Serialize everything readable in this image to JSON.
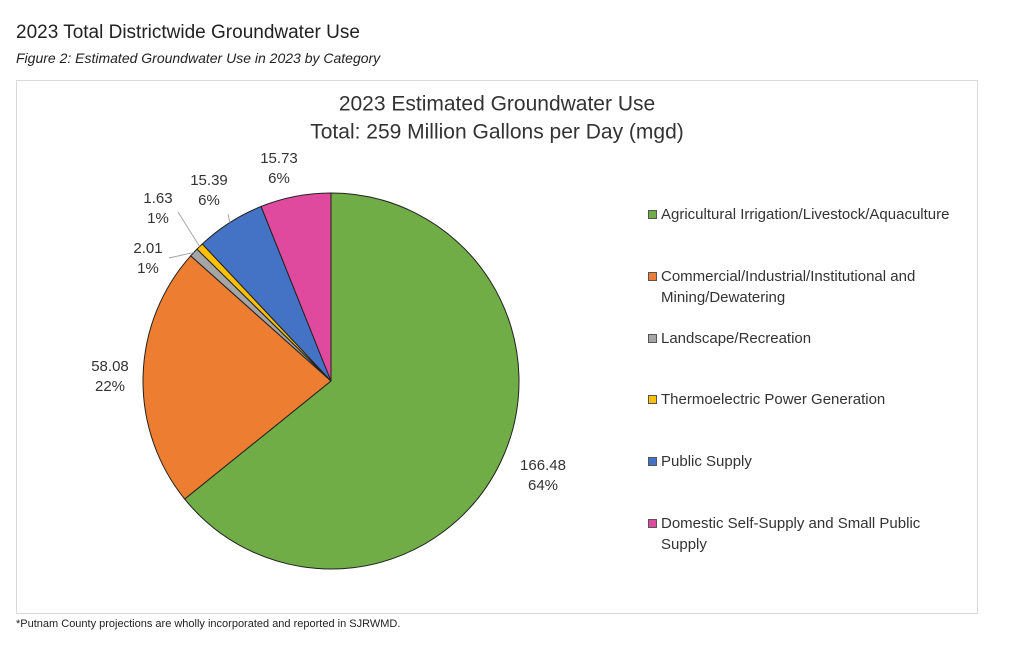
{
  "header": {
    "title": "2023 Total Districtwide Groundwater Use",
    "caption": "Figure 2: Estimated Groundwater Use in 2023 by Category"
  },
  "chart_data": {
    "type": "pie",
    "title": "2023 Estimated Groundwater Use",
    "subtitle": "Total: 259 Million Gallons per Day (mgd)",
    "categories": [
      "Agricultural Irrigation/Livestock/Aquaculture",
      "Commercial/Industrial/Institutional and Mining/Dewatering",
      "Landscape/Recreation",
      "Thermoelectric Power Generation",
      "Public Supply",
      "Domestic Self-Supply and Small Public Supply"
    ],
    "values": [
      166.48,
      58.08,
      2.01,
      1.63,
      15.39,
      15.73
    ],
    "percent_labels": [
      "64%",
      "22%",
      "1%",
      "1%",
      "6%",
      "6%"
    ],
    "colors": [
      "#70ad47",
      "#ed7d31",
      "#a5a5a5",
      "#ffc000",
      "#4472c4",
      "#e04a9e"
    ],
    "legend": "right"
  },
  "footnote": "*Putnam County projections are wholly incorporated and reported in SJRWMD."
}
